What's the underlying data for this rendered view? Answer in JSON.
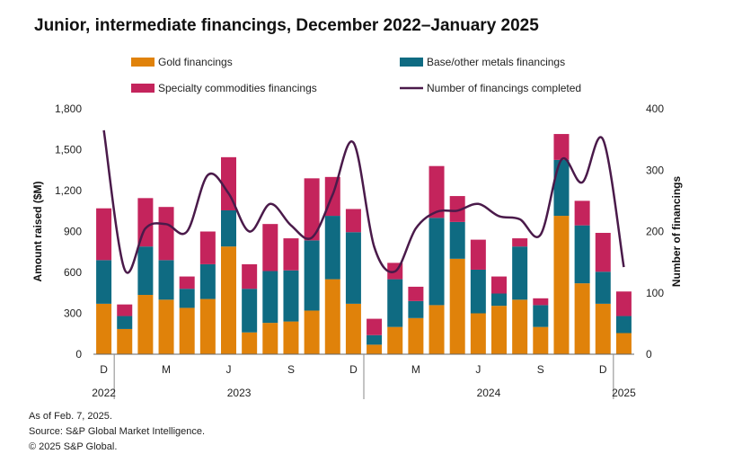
{
  "title": "Junior, intermediate financings, December 2022–January 2025",
  "notes": [
    "As of Feb. 7, 2025.",
    "Source: S&P Global Market Intelligence.",
    "© 2025 S&P Global."
  ],
  "chart_data": {
    "type": "bar",
    "stacked": true,
    "ylabel": "Amount raised ($M)",
    "y2label": "Number of financings",
    "ylim": [
      0,
      1800
    ],
    "y2lim": [
      0,
      400
    ],
    "yticks": [
      "0",
      "300",
      "600",
      "900",
      "1,200",
      "1,500",
      "1,800"
    ],
    "y2ticks": [
      "0",
      "100",
      "200",
      "300",
      "400"
    ],
    "categories": [
      "Dec 2022",
      "Jan 2023",
      "Feb 2023",
      "Mar 2023",
      "Apr 2023",
      "May 2023",
      "Jun 2023",
      "Jul 2023",
      "Aug 2023",
      "Sep 2023",
      "Oct 2023",
      "Nov 2023",
      "Dec 2023",
      "Jan 2024",
      "Feb 2024",
      "Mar 2024",
      "Apr 2024",
      "May 2024",
      "Jun 2024",
      "Jul 2024",
      "Aug 2024",
      "Sep 2024",
      "Oct 2024",
      "Nov 2024",
      "Dec 2024",
      "Jan 2025"
    ],
    "xtick_labels": [
      {
        "index": 0,
        "label": "D"
      },
      {
        "index": 3,
        "label": "M"
      },
      {
        "index": 6,
        "label": "J"
      },
      {
        "index": 9,
        "label": "S"
      },
      {
        "index": 12,
        "label": "D"
      },
      {
        "index": 15,
        "label": "M"
      },
      {
        "index": 18,
        "label": "J"
      },
      {
        "index": 21,
        "label": "S"
      },
      {
        "index": 24,
        "label": "D"
      }
    ],
    "year_labels": [
      {
        "label": "2022",
        "from": 0,
        "to": 0
      },
      {
        "label": "2023",
        "from": 1,
        "to": 12
      },
      {
        "label": "2024",
        "from": 13,
        "to": 24
      },
      {
        "label": "2025",
        "from": 25,
        "to": 25
      }
    ],
    "series": [
      {
        "name": "Gold financings",
        "color": "#e0820a",
        "axis": "left",
        "values": [
          370,
          185,
          435,
          400,
          340,
          405,
          790,
          160,
          230,
          240,
          320,
          550,
          370,
          70,
          200,
          265,
          360,
          700,
          300,
          355,
          400,
          200,
          1015,
          520,
          370,
          155
        ]
      },
      {
        "name": "Base/other metals financings",
        "color": "#0f6b82",
        "axis": "left",
        "values": [
          320,
          95,
          355,
          290,
          140,
          255,
          265,
          320,
          380,
          375,
          515,
          465,
          525,
          70,
          350,
          125,
          640,
          270,
          320,
          90,
          390,
          160,
          410,
          425,
          235,
          125
        ]
      },
      {
        "name": "Specialty commodities financings",
        "color": "#c4245c",
        "axis": "left",
        "values": [
          380,
          85,
          355,
          390,
          90,
          240,
          390,
          180,
          345,
          235,
          455,
          285,
          170,
          120,
          120,
          105,
          380,
          190,
          220,
          125,
          60,
          50,
          190,
          180,
          285,
          180
        ]
      },
      {
        "name": "Number of financings completed",
        "color": "#4a1a4a",
        "axis": "right",
        "type": "line",
        "values": [
          365,
          138,
          205,
          212,
          200,
          292,
          262,
          200,
          245,
          210,
          190,
          260,
          345,
          175,
          135,
          205,
          232,
          234,
          245,
          225,
          220,
          195,
          317,
          280,
          350,
          142
        ]
      }
    ],
    "legend": [
      {
        "label": "Gold financings",
        "swatch": "bar",
        "color": "#e0820a"
      },
      {
        "label": "Base/other metals financings",
        "swatch": "bar",
        "color": "#0f6b82"
      },
      {
        "label": "Specialty commodities financings",
        "swatch": "bar",
        "color": "#c4245c"
      },
      {
        "label": "Number of financings completed",
        "swatch": "line",
        "color": "#4a1a4a"
      }
    ],
    "legend_position": "top",
    "grid": false
  }
}
